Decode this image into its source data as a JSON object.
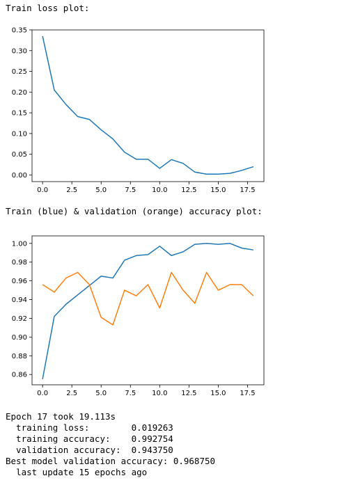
{
  "cells": {
    "loss_heading": "Train loss plot:",
    "acc_heading": "Train (blue) & validation (orange) accuracy plot:",
    "log_lines": [
      "Epoch 17 took 19.113s",
      "  training loss:        0.019263",
      "  training accuracy:    0.992754",
      "  validation accuracy:  0.943750",
      "Best model validation accuracy: 0.968750",
      "  last update 15 epochs ago"
    ]
  },
  "colors": {
    "train": "#1f77b4",
    "validation": "#ff7f0e",
    "axes": "#000000",
    "tick_label": "#000000"
  },
  "chart_data": [
    {
      "type": "line",
      "title": "",
      "xlabel": "",
      "ylabel": "",
      "grid": false,
      "x": [
        0,
        1,
        2,
        3,
        4,
        5,
        6,
        7,
        8,
        9,
        10,
        11,
        12,
        13,
        14,
        15,
        16,
        17,
        18
      ],
      "xlim": [
        -0.9,
        18.9
      ],
      "ylim": [
        -0.016,
        0.35
      ],
      "xticks": [
        0.0,
        2.5,
        5.0,
        7.5,
        10.0,
        12.5,
        15.0,
        17.5
      ],
      "xtick_labels": [
        "0.0",
        "2.5",
        "5.0",
        "7.5",
        "10.0",
        "12.5",
        "15.0",
        "17.5"
      ],
      "yticks": [
        0.0,
        0.05,
        0.1,
        0.15,
        0.2,
        0.25,
        0.3,
        0.35
      ],
      "ytick_labels": [
        "0.00",
        "0.05",
        "0.10",
        "0.15",
        "0.20",
        "0.25",
        "0.30",
        "0.35"
      ],
      "series": [
        {
          "color": "#1f77b4",
          "values": [
            0.335,
            0.205,
            0.17,
            0.141,
            0.134,
            0.109,
            0.087,
            0.055,
            0.038,
            0.038,
            0.016,
            0.037,
            0.028,
            0.007,
            0.002,
            0.002,
            0.004,
            0.011,
            0.02
          ]
        }
      ]
    },
    {
      "type": "line",
      "title": "",
      "xlabel": "",
      "ylabel": "",
      "grid": false,
      "x": [
        0,
        1,
        2,
        3,
        4,
        5,
        6,
        7,
        8,
        9,
        10,
        11,
        12,
        13,
        14,
        15,
        16,
        17,
        18
      ],
      "xlim": [
        -0.9,
        18.9
      ],
      "ylim": [
        0.849,
        1.008
      ],
      "xticks": [
        0.0,
        2.5,
        5.0,
        7.5,
        10.0,
        12.5,
        15.0,
        17.5
      ],
      "xtick_labels": [
        "0.0",
        "2.5",
        "5.0",
        "7.5",
        "10.0",
        "12.5",
        "15.0",
        "17.5"
      ],
      "yticks": [
        0.86,
        0.88,
        0.9,
        0.92,
        0.94,
        0.96,
        0.98,
        1.0
      ],
      "ytick_labels": [
        "0.86",
        "0.88",
        "0.90",
        "0.92",
        "0.94",
        "0.96",
        "0.98",
        "1.00"
      ],
      "series": [
        {
          "color": "#1f77b4",
          "values": [
            0.855,
            0.922,
            0.935,
            0.945,
            0.955,
            0.965,
            0.963,
            0.982,
            0.987,
            0.988,
            0.997,
            0.987,
            0.991,
            0.999,
            1.0,
            0.999,
            1.0,
            0.995,
            0.993
          ]
        },
        {
          "color": "#ff7f0e",
          "values": [
            0.956,
            0.948,
            0.963,
            0.969,
            0.956,
            0.921,
            0.913,
            0.95,
            0.944,
            0.956,
            0.931,
            0.969,
            0.95,
            0.936,
            0.969,
            0.95,
            0.956,
            0.956,
            0.944
          ]
        }
      ]
    }
  ]
}
